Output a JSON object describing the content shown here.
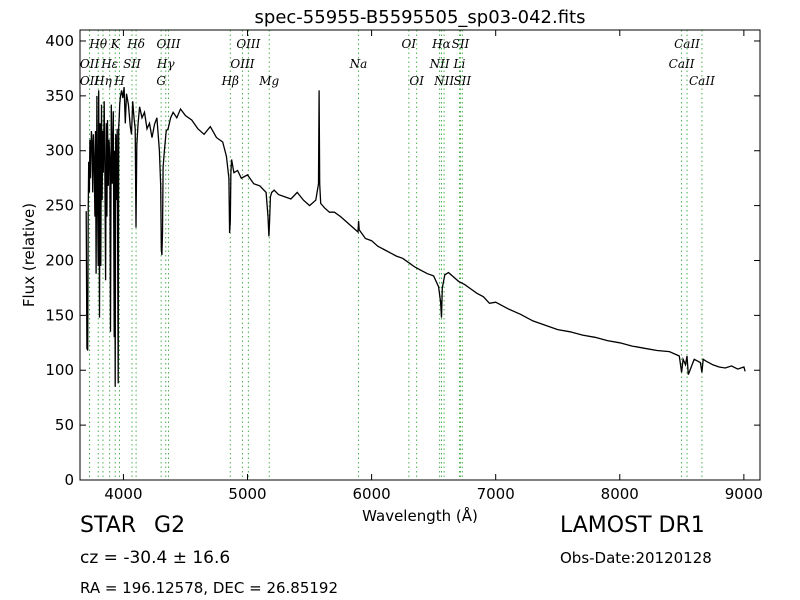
{
  "chart_data": {
    "type": "line",
    "title": "spec-55955-B5595505_sp03-042.fits",
    "xlabel": "Wavelength (Å)",
    "ylabel": "Flux (relative)",
    "xlim": [
      3650,
      9130
    ],
    "ylim": [
      0,
      410
    ],
    "xticks": [
      4000,
      5000,
      6000,
      7000,
      8000,
      9000
    ],
    "yticks": [
      0,
      50,
      100,
      150,
      200,
      250,
      300,
      350,
      400
    ],
    "grid": false,
    "line_color": "#000000",
    "marker_line_color": "#4caf50",
    "series": [
      {
        "x": [
          3700,
          3706,
          3712,
          3716,
          3720,
          3726,
          3730,
          3735,
          3742,
          3748,
          3752,
          3758,
          3764,
          3770,
          3775,
          3780,
          3786,
          3792,
          3797,
          3801,
          3807,
          3812,
          3818,
          3823,
          3828,
          3834,
          3838,
          3845,
          3850,
          3856,
          3862,
          3867,
          3872,
          3878,
          3884,
          3890,
          3896,
          3902,
          3910,
          3918,
          3926,
          3930,
          3934,
          3938,
          3942,
          3950,
          3958,
          3962,
          3966,
          3970,
          3976,
          3985,
          3995,
          4005,
          4015,
          4025,
          4040,
          4055,
          4065,
          4075,
          4085,
          4095,
          4101,
          4108,
          4118,
          4130,
          4150,
          4170,
          4190,
          4210,
          4230,
          4250,
          4270,
          4290,
          4300,
          4305,
          4310,
          4315,
          4320,
          4330,
          4345,
          4360,
          4380,
          4400,
          4430,
          4460,
          4500,
          4550,
          4600,
          4650,
          4700,
          4750,
          4800,
          4830,
          4850,
          4856,
          4861,
          4866,
          4872,
          4890,
          4920,
          4950,
          5000,
          5050,
          5100,
          5150,
          5165,
          5172,
          5178,
          5184,
          5195,
          5215,
          5250,
          5300,
          5350,
          5400,
          5450,
          5500,
          5550,
          5572,
          5577,
          5582,
          5590,
          5620,
          5660,
          5700,
          5750,
          5800,
          5850,
          5890,
          5895,
          5900,
          5950,
          6000,
          6050,
          6100,
          6150,
          6200,
          6250,
          6300,
          6350,
          6400,
          6450,
          6500,
          6540,
          6556,
          6563,
          6570,
          6590,
          6620,
          6650,
          6700,
          6750,
          6800,
          6850,
          6900,
          6950,
          7000,
          7100,
          7200,
          7300,
          7400,
          7500,
          7600,
          7700,
          7800,
          7900,
          8000,
          8100,
          8200,
          8300,
          8400,
          8480,
          8498,
          8510,
          8530,
          8542,
          8552,
          8600,
          8650,
          8662,
          8672,
          8700,
          8750,
          8800,
          8850,
          8900,
          8950,
          9000,
          9010
        ],
        "y": [
          245,
          120,
          118,
          245,
          290,
          262,
          310,
          275,
          318,
          305,
          262,
          315,
          292,
          240,
          318,
          188,
          350,
          250,
          195,
          355,
          148,
          325,
          195,
          342,
          255,
          318,
          280,
          345,
          290,
          182,
          325,
          240,
          328,
          268,
          310,
          295,
          135,
          342,
          270,
          336,
          130,
          300,
          85,
          315,
          255,
          320,
          88,
          322,
          330,
          342,
          350,
          355,
          348,
          358,
          325,
          352,
          342,
          322,
          315,
          345,
          330,
          320,
          230,
          305,
          325,
          340,
          330,
          335,
          320,
          325,
          312,
          324,
          330,
          300,
          268,
          210,
          205,
          225,
          285,
          300,
          318,
          320,
          330,
          335,
          330,
          338,
          332,
          328,
          320,
          315,
          322,
          312,
          308,
          295,
          275,
          225,
          236,
          280,
          292,
          280,
          282,
          275,
          278,
          270,
          268,
          262,
          240,
          222,
          236,
          258,
          262,
          264,
          260,
          258,
          256,
          262,
          255,
          250,
          255,
          270,
          355,
          270,
          252,
          248,
          244,
          244,
          240,
          235,
          230,
          226,
          236,
          228,
          220,
          218,
          213,
          210,
          207,
          204,
          202,
          198,
          194,
          191,
          188,
          186,
          176,
          162,
          148,
          175,
          187,
          189,
          186,
          181,
          178,
          174,
          170,
          167,
          161,
          162,
          156,
          151,
          145,
          141,
          137,
          135,
          132,
          130,
          127,
          125,
          122,
          120,
          118,
          117,
          113,
          98,
          110,
          105,
          113,
          96,
          110,
          107,
          98,
          110,
          108,
          105,
          103,
          102,
          104,
          101,
          103,
          99
        ]
      }
    ],
    "annotation_color": "#000000",
    "lines": [
      {
        "label": "Hθ",
        "x": 3797,
        "row": 0
      },
      {
        "label": "OII",
        "x": 3727,
        "row": 1
      },
      {
        "label": "OII",
        "x": 3727,
        "row": 2
      },
      {
        "label": "Hη",
        "x": 3835,
        "row": 2
      },
      {
        "label": "Hε",
        "x": 3889,
        "row": 1
      },
      {
        "label": "K",
        "x": 3934,
        "row": 0
      },
      {
        "label": "SII",
        "x": 4069,
        "row": 1
      },
      {
        "label": "H",
        "x": 3968,
        "row": 2
      },
      {
        "label": "Hδ",
        "x": 4102,
        "row": 0
      },
      {
        "label": "OIII",
        "x": 4363,
        "row": 0
      },
      {
        "label": "Hγ",
        "x": 4341,
        "row": 1
      },
      {
        "label": "G",
        "x": 4304,
        "row": 2
      },
      {
        "label": "OIII",
        "x": 5007,
        "row": 0
      },
      {
        "label": "OIII",
        "x": 4959,
        "row": 1
      },
      {
        "label": "Hβ",
        "x": 4861,
        "row": 2
      },
      {
        "label": "Mg",
        "x": 5175,
        "row": 2
      },
      {
        "label": "Na",
        "x": 5894,
        "row": 1
      },
      {
        "label": "OI",
        "x": 6300,
        "row": 0
      },
      {
        "label": "OI",
        "x": 6363,
        "row": 2
      },
      {
        "label": "Hα",
        "x": 6563,
        "row": 0
      },
      {
        "label": "NII",
        "x": 6548,
        "row": 1
      },
      {
        "label": "NII",
        "x": 6584,
        "row": 2
      },
      {
        "label": "SII",
        "x": 6716,
        "row": 0
      },
      {
        "label": "Li",
        "x": 6708,
        "row": 1
      },
      {
        "label": "SII",
        "x": 6731,
        "row": 2
      },
      {
        "label": "CaII",
        "x": 8542,
        "row": 0
      },
      {
        "label": "CaII",
        "x": 8498,
        "row": 1
      },
      {
        "label": "CaII",
        "x": 8662,
        "row": 2
      }
    ]
  },
  "info": {
    "class": "STAR",
    "subclass": "G2",
    "cz": "cz = -30.4 ± 16.6",
    "coords": "RA = 196.12578, DEC = 26.85192",
    "survey": "LAMOST DR1",
    "obs_date": "Obs-Date:20120128"
  }
}
